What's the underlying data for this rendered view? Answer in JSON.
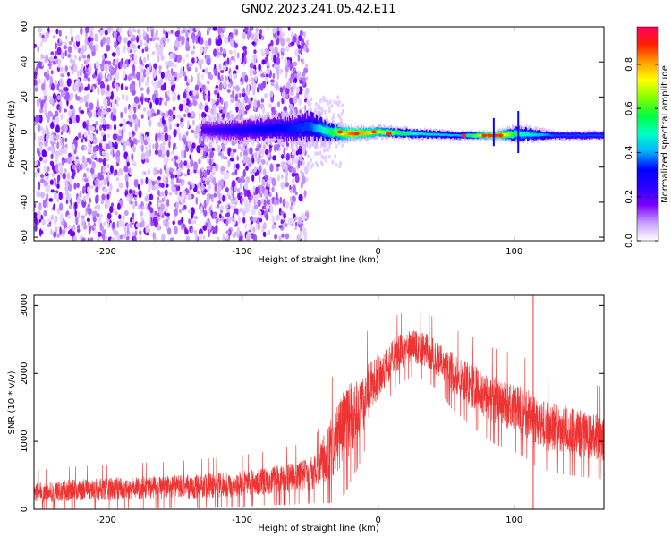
{
  "title": "GN02.2023.241.05.42.E11",
  "chart_data": [
    {
      "type": "heatmap",
      "xlabel": "Height of straight line (km)",
      "ylabel": "Frequency (Hz)",
      "xlim": [
        -253,
        166
      ],
      "ylim": [
        -62,
        60
      ],
      "xticks": [
        -200,
        -100,
        0,
        100
      ],
      "yticks": [
        -60,
        -40,
        -20,
        0,
        20,
        40,
        60
      ],
      "colorbar": {
        "label": "Normalized spectral amplitude",
        "ticks": [
          0.0,
          0.2,
          0.4,
          0.6,
          0.8
        ],
        "range": [
          0,
          0.97
        ],
        "colors": [
          "#ffffff",
          "#c8a0ff",
          "#7b00ff",
          "#2a00ff",
          "#0000ff",
          "#00b0ff",
          "#00ffc8",
          "#00ff40",
          "#80ff00",
          "#ffff00",
          "#ffa000",
          "#ff2000",
          "#ff0060"
        ]
      },
      "noise_region": {
        "x": [
          -253,
          -52
        ],
        "amplitude": 0.12
      },
      "signal_band": [
        {
          "x": -130,
          "f": 1,
          "width": 12,
          "amplitude": 0.2
        },
        {
          "x": -100,
          "f": 1,
          "width": 14,
          "amplitude": 0.28
        },
        {
          "x": -70,
          "f": 2,
          "width": 16,
          "amplitude": 0.32
        },
        {
          "x": -50,
          "f": 3,
          "width": 20,
          "amplitude": 0.35
        },
        {
          "x": -35,
          "f": 0,
          "width": 12,
          "amplitude": 0.55
        },
        {
          "x": -20,
          "f": -1,
          "width": 8,
          "amplitude": 0.85
        },
        {
          "x": 0,
          "f": 0,
          "width": 7,
          "amplitude": 0.7
        },
        {
          "x": 30,
          "f": -1,
          "width": 6,
          "amplitude": 0.45
        },
        {
          "x": 60,
          "f": -2,
          "width": 5,
          "amplitude": 0.4
        },
        {
          "x": 85,
          "f": -2,
          "width": 5,
          "amplitude": 0.9
        },
        {
          "x": 102,
          "f": -1,
          "width": 10,
          "amplitude": 0.5
        },
        {
          "x": 130,
          "f": -2,
          "width": 5,
          "amplitude": 0.35
        },
        {
          "x": 166,
          "f": -2,
          "width": 5,
          "amplitude": 0.35
        }
      ]
    },
    {
      "type": "line",
      "xlabel": "Height of straight line (km)",
      "ylabel": "SNR (10 * v/v)",
      "xlim": [
        -253,
        166
      ],
      "ylim": [
        0,
        3150
      ],
      "xticks": [
        -200,
        -100,
        0,
        100
      ],
      "yticks": [
        0,
        1000,
        2000,
        3000
      ],
      "color": "#ee3333",
      "series": [
        {
          "x": [
            -253,
            -220,
            -190,
            -160,
            -130,
            -100,
            -80,
            -60,
            -45,
            -35,
            -25,
            -15,
            -5,
            5,
            15,
            25,
            35,
            45,
            55,
            70,
            85,
            100,
            110,
            115,
            120,
            140,
            166
          ],
          "y": [
            250,
            280,
            300,
            320,
            340,
            380,
            420,
            470,
            560,
            900,
            1200,
            1500,
            1800,
            2100,
            2300,
            2400,
            2350,
            2200,
            2000,
            1800,
            1600,
            1500,
            1400,
            1300,
            1250,
            1150,
            1050
          ],
          "noise": [
            150,
            160,
            170,
            170,
            180,
            190,
            200,
            220,
            260,
            450,
            550,
            500,
            380,
            300,
            260,
            250,
            250,
            260,
            300,
            330,
            350,
            360,
            370,
            370,
            370,
            360,
            340
          ]
        }
      ],
      "spike": {
        "x": 114,
        "y": 3150
      }
    }
  ]
}
